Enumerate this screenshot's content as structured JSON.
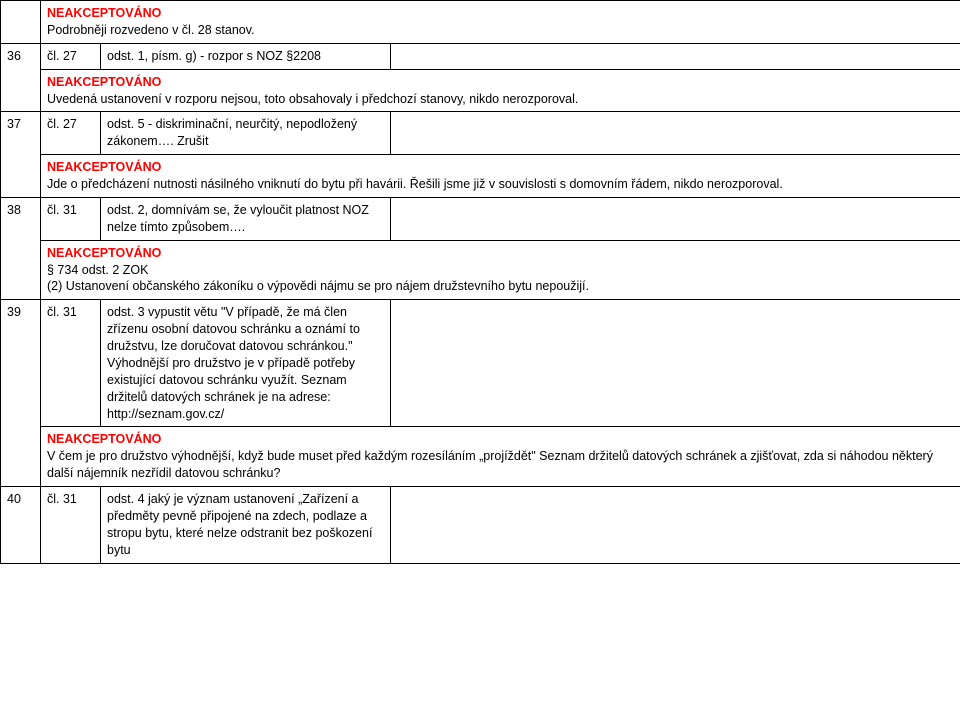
{
  "colors": {
    "text": "#000000",
    "accent_red": "#ff0000",
    "border": "#000000",
    "background": "#ffffff"
  },
  "typography": {
    "font_family": "Arial",
    "font_size_pt": 9,
    "line_height": 1.35,
    "rej_weight": "bold"
  },
  "rows": [
    {
      "num": "",
      "ref": "",
      "desc": "",
      "status_label": "NEAKCEPTOVÁNO",
      "response_text": "Podrobněji rozvedeno v čl. 28 stanov."
    },
    {
      "num": "36",
      "ref": "čl. 27",
      "desc": "odst. 1, písm. g) - rozpor s NOZ §2208",
      "status_label": "NEAKCEPTOVÁNO",
      "response_text": "Uvedená ustanovení v rozporu nejsou, toto obsahovaly i předchozí stanovy, nikdo nerozporoval."
    },
    {
      "num": "37",
      "ref": "čl. 27",
      "desc": "odst. 5 - diskriminační, neurčitý, nepodložený zákonem…. Zrušit",
      "status_label": "NEAKCEPTOVÁNO",
      "response_text": "Jde o předcházení nutnosti násilného vniknutí do bytu při havárii. Řešili jsme již v souvislosti s domovním řádem, nikdo nerozporoval."
    },
    {
      "num": "38",
      "ref": "čl. 31",
      "desc": "odst. 2, domnívám se, že vyloučit platnost NOZ nelze tímto způsobem….",
      "status_label": "NEAKCEPTOVÁNO",
      "response_extra": "§ 734 odst. 2 ZOK",
      "response_text": "(2) Ustanovení občanského zákoníku o výpovědi nájmu se pro nájem družstevního bytu nepoužijí."
    },
    {
      "num": "39",
      "ref": "čl. 31",
      "desc": "odst. 3 vypustit větu \"V případě, že má člen zřízenu osobní datovou schránku a oznámí to družstvu, lze doručovat datovou schránkou.\" Výhodnější pro družstvo je v případě potřeby existující datovou schránku využít. Seznam držitelů datových schránek je na adrese: http://seznam.gov.cz/",
      "status_label": "NEAKCEPTOVÁNO",
      "response_text": "V čem je pro družstvo výhodnější, když bude muset před každým rozesíláním „projíždět\" Seznam držitelů datových schránek a zjišťovat, zda si náhodou některý další nájemník nezřídil datovou schránku?"
    },
    {
      "num": "40",
      "ref": "čl. 31",
      "desc": "odst. 4 jaký je význam ustanovení „Zařízení a předměty pevně připojené na zdech, podlaze a stropu bytu, které nelze odstranit bez poškození bytu",
      "status_label": "",
      "response_text": ""
    }
  ]
}
